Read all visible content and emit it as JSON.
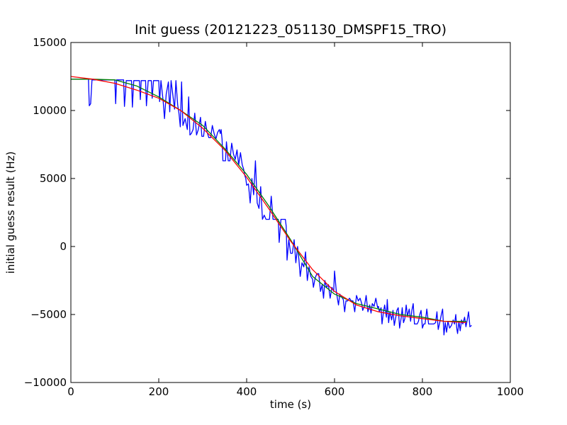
{
  "chart_data": {
    "type": "line",
    "title": "Init guess (20121223_051130_DMSPF15_TRO)",
    "xlabel": "time (s)",
    "ylabel": "initial guess result (Hz)",
    "xlim": [
      0,
      1000
    ],
    "ylim": [
      -10000,
      15000
    ],
    "x_ticks": [
      "0",
      "200",
      "400",
      "600",
      "800",
      "1000"
    ],
    "y_ticks": [
      "−10000",
      "−5000",
      "0",
      "5000",
      "10000",
      "15000"
    ],
    "x_tick_values": [
      0,
      200,
      400,
      600,
      800,
      1000
    ],
    "y_tick_values": [
      -10000,
      -5000,
      0,
      5000,
      10000,
      15000
    ],
    "grid": false,
    "legend": "none",
    "series": [
      {
        "color": "#0000ff",
        "points": [
          [
            0,
            12300
          ],
          [
            30,
            12300
          ],
          [
            40,
            12300
          ],
          [
            42,
            10350
          ],
          [
            45,
            10500
          ],
          [
            48,
            12250
          ],
          [
            100,
            12250
          ],
          [
            102,
            10500
          ],
          [
            104,
            12250
          ],
          [
            118,
            12250
          ],
          [
            120,
            12250
          ],
          [
            122,
            10300
          ],
          [
            126,
            12200
          ],
          [
            138,
            12200
          ],
          [
            140,
            10250
          ],
          [
            143,
            12200
          ],
          [
            156,
            12200
          ],
          [
            158,
            10800
          ],
          [
            160,
            12200
          ],
          [
            170,
            12200
          ],
          [
            172,
            10350
          ],
          [
            176,
            12200
          ],
          [
            183,
            12200
          ],
          [
            185,
            10900
          ],
          [
            188,
            12200
          ],
          [
            200,
            12200
          ],
          [
            202,
            10650
          ],
          [
            205,
            12200
          ],
          [
            210,
            10700
          ],
          [
            213,
            9400
          ],
          [
            217,
            11200
          ],
          [
            222,
            12100
          ],
          [
            225,
            9900
          ],
          [
            228,
            12200
          ],
          [
            236,
            10100
          ],
          [
            239,
            12200
          ],
          [
            243,
            10400
          ],
          [
            246,
            9800
          ],
          [
            249,
            8800
          ],
          [
            252,
            12100
          ],
          [
            255,
            8900
          ],
          [
            260,
            9400
          ],
          [
            265,
            8600
          ],
          [
            268,
            11000
          ],
          [
            271,
            8200
          ],
          [
            274,
            8300
          ],
          [
            278,
            8600
          ],
          [
            282,
            9800
          ],
          [
            286,
            8200
          ],
          [
            290,
            8600
          ],
          [
            295,
            9500
          ],
          [
            298,
            8100
          ],
          [
            302,
            8100
          ],
          [
            306,
            9200
          ],
          [
            310,
            8400
          ],
          [
            314,
            8000
          ],
          [
            318,
            8000
          ],
          [
            322,
            8900
          ],
          [
            326,
            8300
          ],
          [
            330,
            7900
          ],
          [
            334,
            8400
          ],
          [
            338,
            8600
          ],
          [
            340,
            8300
          ],
          [
            342,
            8600
          ],
          [
            344,
            7900
          ],
          [
            346,
            6300
          ],
          [
            352,
            6300
          ],
          [
            354,
            7700
          ],
          [
            358,
            6300
          ],
          [
            362,
            6300
          ],
          [
            366,
            7600
          ],
          [
            370,
            6800
          ],
          [
            374,
            6400
          ],
          [
            378,
            7100
          ],
          [
            382,
            6000
          ],
          [
            386,
            6900
          ],
          [
            390,
            6000
          ],
          [
            393,
            5700
          ],
          [
            396,
            5200
          ],
          [
            398,
            5000
          ],
          [
            400,
            4500
          ],
          [
            404,
            4600
          ],
          [
            408,
            3200
          ],
          [
            412,
            5000
          ],
          [
            416,
            3800
          ],
          [
            420,
            6300
          ],
          [
            424,
            3200
          ],
          [
            428,
            2800
          ],
          [
            432,
            4400
          ],
          [
            436,
            2000
          ],
          [
            440,
            2300
          ],
          [
            444,
            2000
          ],
          [
            448,
            2000
          ],
          [
            452,
            2000
          ],
          [
            456,
            3700
          ],
          [
            460,
            2000
          ],
          [
            464,
            2000
          ],
          [
            472,
            2000
          ],
          [
            474,
            300
          ],
          [
            478,
            2000
          ],
          [
            488,
            2000
          ],
          [
            490,
            1500
          ],
          [
            492,
            -1000
          ],
          [
            496,
            500
          ],
          [
            500,
            -500
          ],
          [
            504,
            -500
          ],
          [
            508,
            500
          ],
          [
            512,
            -1200
          ],
          [
            516,
            0
          ],
          [
            519,
            -1000
          ],
          [
            522,
            -2200
          ],
          [
            526,
            -1200
          ],
          [
            530,
            -1500
          ],
          [
            534,
            -400
          ],
          [
            538,
            -2500
          ],
          [
            542,
            -1500
          ],
          [
            546,
            -2200
          ],
          [
            550,
            -2400
          ],
          [
            552,
            -3000
          ],
          [
            556,
            -2300
          ],
          [
            560,
            -2000
          ],
          [
            564,
            -2000
          ],
          [
            568,
            -3300
          ],
          [
            572,
            -2800
          ],
          [
            575,
            -3800
          ],
          [
            578,
            -2500
          ],
          [
            582,
            -3000
          ],
          [
            586,
            -2800
          ],
          [
            590,
            -3800
          ],
          [
            594,
            -3000
          ],
          [
            598,
            -3300
          ],
          [
            600,
            -1800
          ],
          [
            604,
            -3300
          ],
          [
            606,
            -3700
          ],
          [
            609,
            -4300
          ],
          [
            612,
            -3500
          ],
          [
            616,
            -3700
          ],
          [
            620,
            -3900
          ],
          [
            623,
            -4800
          ],
          [
            626,
            -4000
          ],
          [
            630,
            -4000
          ],
          [
            634,
            -3800
          ],
          [
            638,
            -4000
          ],
          [
            642,
            -4000
          ],
          [
            646,
            -4800
          ],
          [
            650,
            -3600
          ],
          [
            654,
            -4000
          ],
          [
            658,
            -3800
          ],
          [
            662,
            -4200
          ],
          [
            664,
            -4700
          ],
          [
            668,
            -4400
          ],
          [
            672,
            -3600
          ],
          [
            676,
            -4800
          ],
          [
            680,
            -4300
          ],
          [
            683,
            -4900
          ],
          [
            686,
            -4200
          ],
          [
            690,
            -4400
          ],
          [
            694,
            -3800
          ],
          [
            698,
            -4500
          ],
          [
            700,
            -4400
          ],
          [
            702,
            -4800
          ],
          [
            706,
            -4500
          ],
          [
            708,
            -5700
          ],
          [
            711,
            -4900
          ],
          [
            714,
            -4300
          ],
          [
            718,
            -5200
          ],
          [
            720,
            -3900
          ],
          [
            723,
            -5600
          ],
          [
            726,
            -4800
          ],
          [
            730,
            -5400
          ],
          [
            733,
            -4700
          ],
          [
            736,
            -5800
          ],
          [
            740,
            -5100
          ],
          [
            742,
            -4700
          ],
          [
            745,
            -4500
          ],
          [
            748,
            -6000
          ],
          [
            752,
            -5200
          ],
          [
            754,
            -4500
          ],
          [
            757,
            -5600
          ],
          [
            760,
            -5300
          ],
          [
            763,
            -4300
          ],
          [
            766,
            -5100
          ],
          [
            770,
            -4600
          ],
          [
            773,
            -5500
          ],
          [
            776,
            -4700
          ],
          [
            779,
            -4200
          ],
          [
            782,
            -5700
          ],
          [
            785,
            -5700
          ],
          [
            788,
            -5700
          ],
          [
            791,
            -5500
          ],
          [
            794,
            -5000
          ],
          [
            797,
            -4700
          ],
          [
            800,
            -6000
          ],
          [
            803,
            -5700
          ],
          [
            806,
            -5700
          ],
          [
            810,
            -4600
          ],
          [
            814,
            -5700
          ],
          [
            818,
            -5700
          ],
          [
            822,
            -5700
          ],
          [
            826,
            -5700
          ],
          [
            830,
            -5600
          ],
          [
            833,
            -4800
          ],
          [
            836,
            -6100
          ],
          [
            840,
            -5500
          ],
          [
            843,
            -5000
          ],
          [
            846,
            -4600
          ],
          [
            849,
            -6500
          ],
          [
            852,
            -5600
          ],
          [
            855,
            -6300
          ],
          [
            858,
            -5500
          ],
          [
            862,
            -6000
          ],
          [
            866,
            -5800
          ],
          [
            870,
            -5400
          ],
          [
            873,
            -5700
          ],
          [
            876,
            -5000
          ],
          [
            878,
            -6000
          ],
          [
            880,
            -6400
          ],
          [
            883,
            -5500
          ],
          [
            886,
            -6200
          ],
          [
            889,
            -5400
          ],
          [
            892,
            -5700
          ],
          [
            896,
            -5200
          ],
          [
            899,
            -5900
          ],
          [
            902,
            -5400
          ],
          [
            905,
            -4800
          ],
          [
            908,
            -5900
          ],
          [
            912,
            -5800
          ]
        ]
      },
      {
        "color": "#008000",
        "points": [
          [
            0,
            12300
          ],
          [
            50,
            12300
          ],
          [
            100,
            12250
          ],
          [
            150,
            11800
          ],
          [
            200,
            11000
          ],
          [
            250,
            10000
          ],
          [
            300,
            8900
          ],
          [
            350,
            7200
          ],
          [
            400,
            5300
          ],
          [
            450,
            3000
          ],
          [
            500,
            500
          ],
          [
            550,
            -2200
          ],
          [
            600,
            -3500
          ],
          [
            650,
            -4200
          ],
          [
            700,
            -4600
          ],
          [
            750,
            -5000
          ],
          [
            800,
            -5200
          ],
          [
            850,
            -5500
          ],
          [
            900,
            -5500
          ]
        ]
      },
      {
        "color": "#ff0000",
        "points": [
          [
            0,
            12500
          ],
          [
            50,
            12300
          ],
          [
            100,
            12000
          ],
          [
            150,
            11500
          ],
          [
            200,
            10900
          ],
          [
            250,
            10000
          ],
          [
            300,
            8700
          ],
          [
            350,
            7100
          ],
          [
            400,
            5100
          ],
          [
            450,
            2800
          ],
          [
            500,
            400
          ],
          [
            550,
            -1700
          ],
          [
            600,
            -3300
          ],
          [
            650,
            -4300
          ],
          [
            700,
            -4800
          ],
          [
            750,
            -5100
          ],
          [
            800,
            -5300
          ],
          [
            850,
            -5500
          ],
          [
            900,
            -5600
          ]
        ]
      }
    ]
  }
}
